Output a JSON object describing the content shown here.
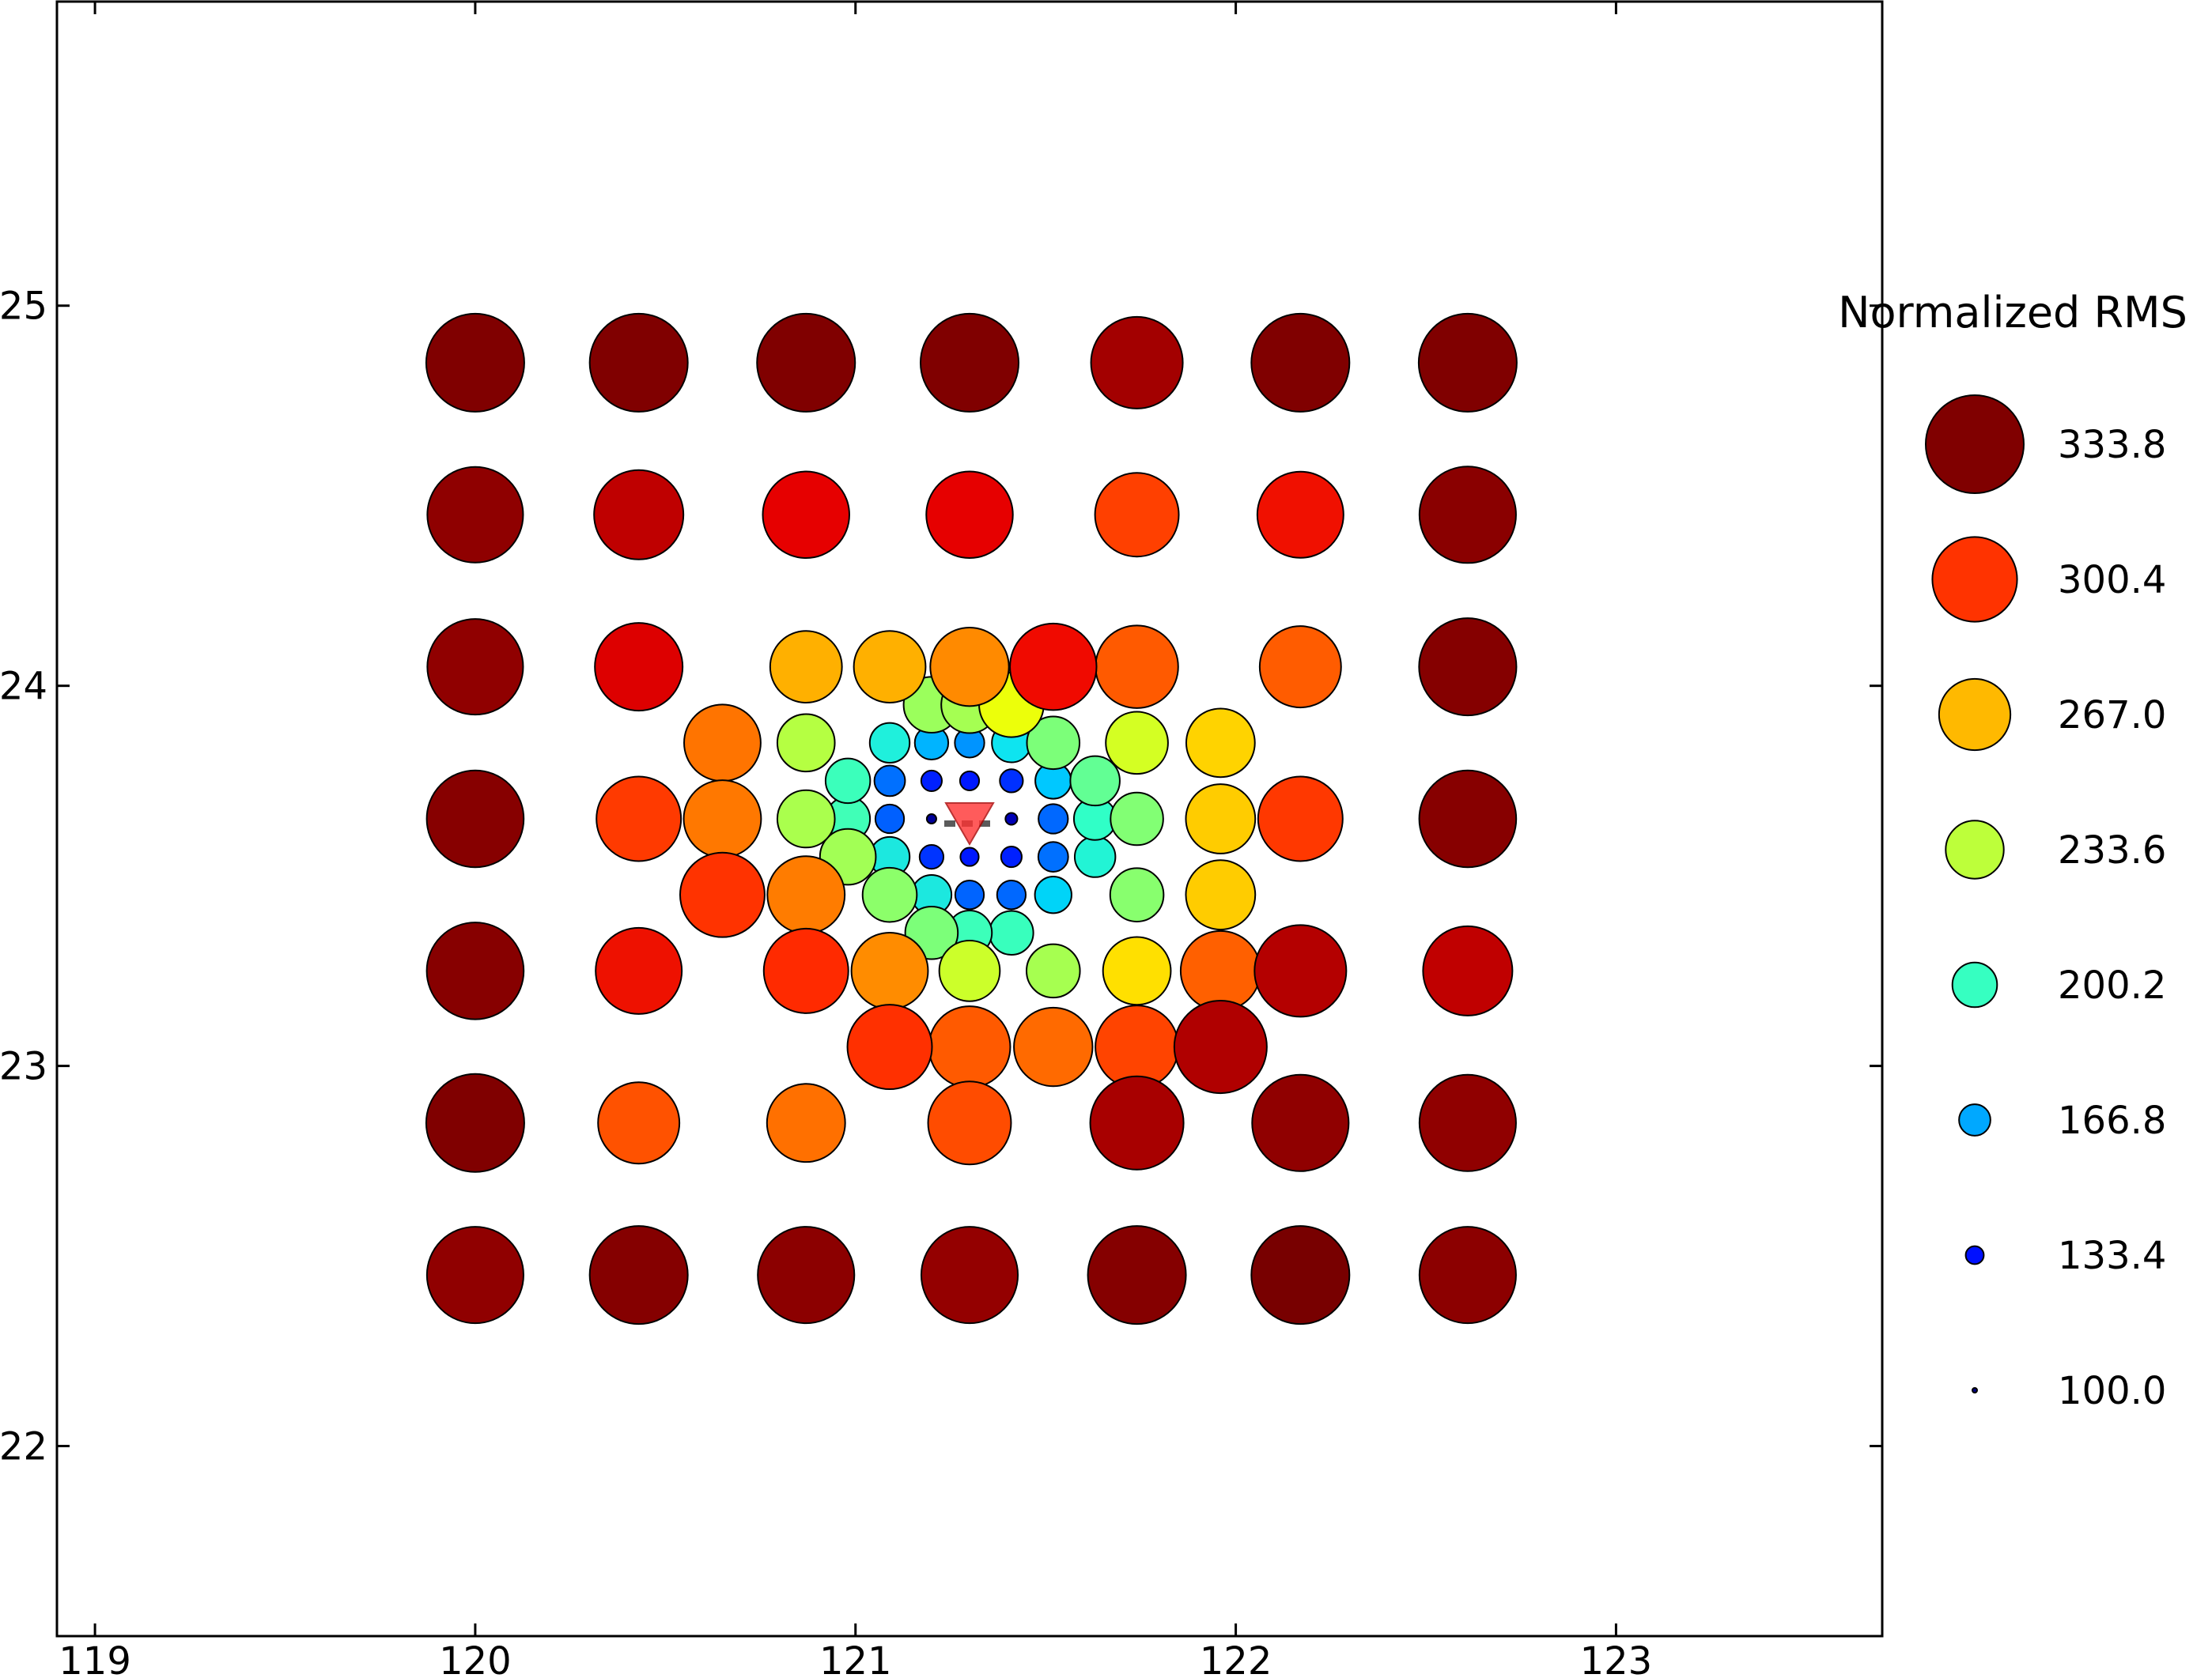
{
  "chart_data": {
    "type": "scatter",
    "title": "",
    "xlabel": "",
    "ylabel": "",
    "xlim": [
      118.9,
      123.7
    ],
    "ylim": [
      21.5,
      25.8
    ],
    "xticks": [
      119,
      120,
      121,
      122,
      123
    ],
    "yticks": [
      22,
      23,
      24,
      25
    ],
    "xtick_labels": [
      "119",
      "120",
      "121",
      "122",
      "123"
    ],
    "ytick_labels": [
      "22",
      "23",
      "24",
      "25"
    ],
    "grid": false,
    "legend": {
      "title": "Normalized RMS",
      "placement": "right",
      "entries": [
        {
          "label": "333.8",
          "value": 333.8,
          "color": "#800000"
        },
        {
          "label": "300.4",
          "value": 300.4,
          "color": "#ff3300"
        },
        {
          "label": "267.0",
          "value": 267.0,
          "color": "#ffb900"
        },
        {
          "label": "233.6",
          "value": 233.6,
          "color": "#bdff3a"
        },
        {
          "label": "200.2",
          "value": 200.2,
          "color": "#36ffc1"
        },
        {
          "label": "166.8",
          "value": 166.8,
          "color": "#00a8ff"
        },
        {
          "label": "133.4",
          "value": 133.4,
          "color": "#0010ff"
        },
        {
          "label": "100.0",
          "value": 100.0,
          "color": "#000080"
        }
      ]
    },
    "marker": {
      "type": "triangle-down",
      "x": 121.3,
      "y": 23.65,
      "color": "#ff3333"
    },
    "points": [
      {
        "x": 120.0,
        "y": 24.85,
        "v": 333.8,
        "c": "#800000"
      },
      {
        "x": 120.43,
        "y": 24.85,
        "v": 333.8,
        "c": "#800000"
      },
      {
        "x": 120.87,
        "y": 24.85,
        "v": 333.8,
        "c": "#800000"
      },
      {
        "x": 121.3,
        "y": 24.85,
        "v": 333.8,
        "c": "#800000"
      },
      {
        "x": 121.74,
        "y": 24.85,
        "v": 318,
        "c": "#a30000"
      },
      {
        "x": 122.17,
        "y": 24.85,
        "v": 333.8,
        "c": "#800000"
      },
      {
        "x": 122.61,
        "y": 24.85,
        "v": 333.8,
        "c": "#800000"
      },
      {
        "x": 120.0,
        "y": 24.45,
        "v": 328,
        "c": "#8f0000"
      },
      {
        "x": 120.43,
        "y": 24.45,
        "v": 312,
        "c": "#bf0000"
      },
      {
        "x": 120.87,
        "y": 24.45,
        "v": 305,
        "c": "#e60000"
      },
      {
        "x": 121.3,
        "y": 24.45,
        "v": 305,
        "c": "#e60000"
      },
      {
        "x": 121.74,
        "y": 24.45,
        "v": 298,
        "c": "#ff4000"
      },
      {
        "x": 122.17,
        "y": 24.45,
        "v": 304,
        "c": "#f01000"
      },
      {
        "x": 122.61,
        "y": 24.45,
        "v": 330,
        "c": "#8a0000"
      },
      {
        "x": 120.0,
        "y": 24.05,
        "v": 328,
        "c": "#900000"
      },
      {
        "x": 120.43,
        "y": 24.05,
        "v": 308,
        "c": "#dd0000"
      },
      {
        "x": 120.87,
        "y": 24.05,
        "v": 268,
        "c": "#ffb000"
      },
      {
        "x": 121.09,
        "y": 24.05,
        "v": 268,
        "c": "#ffb000"
      },
      {
        "x": 121.3,
        "y": 24.05,
        "v": 285,
        "c": "#ff8a00"
      },
      {
        "x": 121.52,
        "y": 24.05,
        "v": 305,
        "c": "#f00a00"
      },
      {
        "x": 121.74,
        "y": 24.05,
        "v": 295,
        "c": "#ff5a00"
      },
      {
        "x": 122.17,
        "y": 24.05,
        "v": 292,
        "c": "#ff5c00"
      },
      {
        "x": 122.61,
        "y": 24.05,
        "v": 332,
        "c": "#850000"
      },
      {
        "x": 121.2,
        "y": 23.95,
        "v": 228,
        "c": "#9bff5c"
      },
      {
        "x": 121.3,
        "y": 23.95,
        "v": 230,
        "c": "#a5ff52"
      },
      {
        "x": 121.41,
        "y": 23.95,
        "v": 250,
        "c": "#ecff0a"
      },
      {
        "x": 120.65,
        "y": 23.85,
        "v": 280,
        "c": "#ff7400"
      },
      {
        "x": 120.87,
        "y": 23.85,
        "v": 232,
        "c": "#b5ff42"
      },
      {
        "x": 121.09,
        "y": 23.85,
        "v": 188,
        "c": "#1ff0dc"
      },
      {
        "x": 121.2,
        "y": 23.85,
        "v": 172,
        "c": "#00b4ff"
      },
      {
        "x": 121.3,
        "y": 23.85,
        "v": 162,
        "c": "#0094ff"
      },
      {
        "x": 121.41,
        "y": 23.85,
        "v": 186,
        "c": "#0ee4f0"
      },
      {
        "x": 121.52,
        "y": 23.85,
        "v": 220,
        "c": "#7cff79"
      },
      {
        "x": 121.74,
        "y": 23.85,
        "v": 244,
        "c": "#d4ff23"
      },
      {
        "x": 121.96,
        "y": 23.85,
        "v": 260,
        "c": "#ffd300"
      },
      {
        "x": 120.98,
        "y": 23.75,
        "v": 200,
        "c": "#3bffbb"
      },
      {
        "x": 121.09,
        "y": 23.75,
        "v": 165,
        "c": "#0070ff"
      },
      {
        "x": 121.2,
        "y": 23.75,
        "v": 140,
        "c": "#0020ff"
      },
      {
        "x": 121.3,
        "y": 23.75,
        "v": 136,
        "c": "#0018ff"
      },
      {
        "x": 121.41,
        "y": 23.75,
        "v": 146,
        "c": "#0030ff"
      },
      {
        "x": 121.52,
        "y": 23.75,
        "v": 178,
        "c": "#00c8ff"
      },
      {
        "x": 121.63,
        "y": 23.75,
        "v": 212,
        "c": "#62ff94"
      },
      {
        "x": 120.0,
        "y": 23.65,
        "v": 331,
        "c": "#870000"
      },
      {
        "x": 120.43,
        "y": 23.65,
        "v": 300,
        "c": "#ff3a00"
      },
      {
        "x": 120.65,
        "y": 23.65,
        "v": 282,
        "c": "#ff7800"
      },
      {
        "x": 120.87,
        "y": 23.65,
        "v": 232,
        "c": "#aaff4d"
      },
      {
        "x": 120.98,
        "y": 23.65,
        "v": 199,
        "c": "#40ffb7"
      },
      {
        "x": 121.09,
        "y": 23.65,
        "v": 160,
        "c": "#0060ff"
      },
      {
        "x": 121.2,
        "y": 23.65,
        "v": 112,
        "c": "#000098"
      },
      {
        "x": 121.41,
        "y": 23.65,
        "v": 118,
        "c": "#0000b6"
      },
      {
        "x": 121.52,
        "y": 23.65,
        "v": 162,
        "c": "#0068ff"
      },
      {
        "x": 121.63,
        "y": 23.65,
        "v": 194,
        "c": "#30ffc7"
      },
      {
        "x": 121.74,
        "y": 23.65,
        "v": 220,
        "c": "#82ff74"
      },
      {
        "x": 121.96,
        "y": 23.65,
        "v": 262,
        "c": "#ffcc00"
      },
      {
        "x": 122.17,
        "y": 23.65,
        "v": 300,
        "c": "#ff3800"
      },
      {
        "x": 122.61,
        "y": 23.65,
        "v": 331,
        "c": "#870000"
      },
      {
        "x": 120.98,
        "y": 23.55,
        "v": 228,
        "c": "#a2ff55"
      },
      {
        "x": 121.09,
        "y": 23.55,
        "v": 188,
        "c": "#1ce8df"
      },
      {
        "x": 121.2,
        "y": 23.55,
        "v": 148,
        "c": "#0034ff"
      },
      {
        "x": 121.3,
        "y": 23.55,
        "v": 134,
        "c": "#0018ff"
      },
      {
        "x": 121.41,
        "y": 23.55,
        "v": 140,
        "c": "#0020ff"
      },
      {
        "x": 121.52,
        "y": 23.55,
        "v": 163,
        "c": "#0070ff"
      },
      {
        "x": 121.63,
        "y": 23.55,
        "v": 190,
        "c": "#22f4d5"
      },
      {
        "x": 120.65,
        "y": 23.45,
        "v": 300,
        "c": "#ff3300"
      },
      {
        "x": 120.87,
        "y": 23.45,
        "v": 282,
        "c": "#ff7c00"
      },
      {
        "x": 121.09,
        "y": 23.45,
        "v": 224,
        "c": "#8cff6a"
      },
      {
        "x": 121.2,
        "y": 23.45,
        "v": 188,
        "c": "#1ce8df"
      },
      {
        "x": 121.3,
        "y": 23.45,
        "v": 160,
        "c": "#0064ff"
      },
      {
        "x": 121.41,
        "y": 23.45,
        "v": 160,
        "c": "#0068ff"
      },
      {
        "x": 121.52,
        "y": 23.45,
        "v": 180,
        "c": "#00d4f8"
      },
      {
        "x": 121.74,
        "y": 23.45,
        "v": 222,
        "c": "#88ff6e"
      },
      {
        "x": 121.96,
        "y": 23.45,
        "v": 262,
        "c": "#ffcc00"
      },
      {
        "x": 121.2,
        "y": 23.35,
        "v": 220,
        "c": "#7cff79"
      },
      {
        "x": 121.3,
        "y": 23.35,
        "v": 200,
        "c": "#3cffba"
      },
      {
        "x": 121.41,
        "y": 23.35,
        "v": 198,
        "c": "#38ffbd"
      },
      {
        "x": 120.0,
        "y": 23.25,
        "v": 331,
        "c": "#870000"
      },
      {
        "x": 120.43,
        "y": 23.25,
        "v": 304,
        "c": "#ee1100"
      },
      {
        "x": 120.87,
        "y": 23.25,
        "v": 300,
        "c": "#ff2a00"
      },
      {
        "x": 121.09,
        "y": 23.25,
        "v": 280,
        "c": "#ff8c00"
      },
      {
        "x": 121.3,
        "y": 23.25,
        "v": 240,
        "c": "#ccff2a"
      },
      {
        "x": 121.52,
        "y": 23.25,
        "v": 222,
        "c": "#a6ff50"
      },
      {
        "x": 121.74,
        "y": 23.25,
        "v": 258,
        "c": "#ffe000"
      },
      {
        "x": 121.96,
        "y": 23.25,
        "v": 288,
        "c": "#ff6000"
      },
      {
        "x": 122.17,
        "y": 23.25,
        "v": 318,
        "c": "#b40000"
      },
      {
        "x": 122.61,
        "y": 23.25,
        "v": 312,
        "c": "#c00000"
      },
      {
        "x": 121.09,
        "y": 23.05,
        "v": 300,
        "c": "#ff3000"
      },
      {
        "x": 121.3,
        "y": 23.05,
        "v": 292,
        "c": "#ff5a00"
      },
      {
        "x": 121.52,
        "y": 23.05,
        "v": 285,
        "c": "#ff6a00"
      },
      {
        "x": 121.74,
        "y": 23.05,
        "v": 296,
        "c": "#ff4400"
      },
      {
        "x": 121.96,
        "y": 23.05,
        "v": 320,
        "c": "#b00000"
      },
      {
        "x": 120.0,
        "y": 22.85,
        "v": 333.8,
        "c": "#800000"
      },
      {
        "x": 120.43,
        "y": 22.85,
        "v": 292,
        "c": "#ff5200"
      },
      {
        "x": 120.87,
        "y": 22.85,
        "v": 284,
        "c": "#ff7000"
      },
      {
        "x": 121.3,
        "y": 22.85,
        "v": 296,
        "c": "#ff4c00"
      },
      {
        "x": 121.74,
        "y": 22.85,
        "v": 322,
        "c": "#a80000"
      },
      {
        "x": 122.17,
        "y": 22.85,
        "v": 330,
        "c": "#900000"
      },
      {
        "x": 122.61,
        "y": 22.85,
        "v": 330,
        "c": "#900000"
      },
      {
        "x": 120.0,
        "y": 22.45,
        "v": 330,
        "c": "#900000"
      },
      {
        "x": 120.43,
        "y": 22.45,
        "v": 333.8,
        "c": "#850000"
      },
      {
        "x": 120.87,
        "y": 22.45,
        "v": 330,
        "c": "#8c0000"
      },
      {
        "x": 121.3,
        "y": 22.45,
        "v": 330,
        "c": "#940000"
      },
      {
        "x": 121.74,
        "y": 22.45,
        "v": 333.8,
        "c": "#850000"
      },
      {
        "x": 122.17,
        "y": 22.45,
        "v": 333.8,
        "c": "#780000"
      },
      {
        "x": 122.61,
        "y": 22.45,
        "v": 330,
        "c": "#8c0000"
      }
    ]
  }
}
